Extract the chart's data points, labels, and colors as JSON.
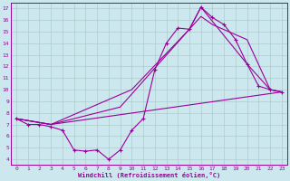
{
  "xlabel": "Windchill (Refroidissement éolien,°C)",
  "xlim": [
    -0.5,
    23.5
  ],
  "ylim": [
    3.5,
    17.5
  ],
  "yticks": [
    4,
    5,
    6,
    7,
    8,
    9,
    10,
    11,
    12,
    13,
    14,
    15,
    16,
    17
  ],
  "xticks": [
    0,
    1,
    2,
    3,
    4,
    5,
    6,
    7,
    8,
    9,
    10,
    11,
    12,
    13,
    14,
    15,
    16,
    17,
    18,
    19,
    20,
    21,
    22,
    23
  ],
  "background_color": "#cce8ee",
  "line_color": "#990099",
  "grid_color": "#aacccc",
  "lines": [
    {
      "x": [
        0,
        1,
        2,
        3,
        4,
        5,
        6,
        7,
        8,
        9,
        10,
        11,
        12,
        13,
        14,
        15,
        16,
        17,
        18,
        19,
        20,
        21,
        22,
        23
      ],
      "y": [
        7.5,
        7.0,
        7.0,
        6.8,
        6.5,
        4.8,
        4.7,
        4.8,
        4.0,
        4.8,
        6.5,
        7.5,
        11.7,
        14.0,
        15.3,
        15.2,
        17.1,
        16.2,
        15.6,
        14.3,
        12.2,
        10.3,
        10.0,
        9.8
      ],
      "marker": "+"
    },
    {
      "x": [
        0,
        3,
        10,
        15,
        16,
        17,
        20,
        22,
        23
      ],
      "y": [
        7.5,
        7.0,
        10.0,
        15.2,
        16.3,
        15.6,
        14.3,
        10.0,
        9.8
      ],
      "marker": null
    },
    {
      "x": [
        0,
        3,
        23
      ],
      "y": [
        7.5,
        7.0,
        9.8
      ],
      "marker": null
    },
    {
      "x": [
        0,
        3,
        9,
        15,
        16,
        20,
        22,
        23
      ],
      "y": [
        7.5,
        7.0,
        8.5,
        15.2,
        17.1,
        12.2,
        10.0,
        9.8
      ],
      "marker": null
    }
  ]
}
